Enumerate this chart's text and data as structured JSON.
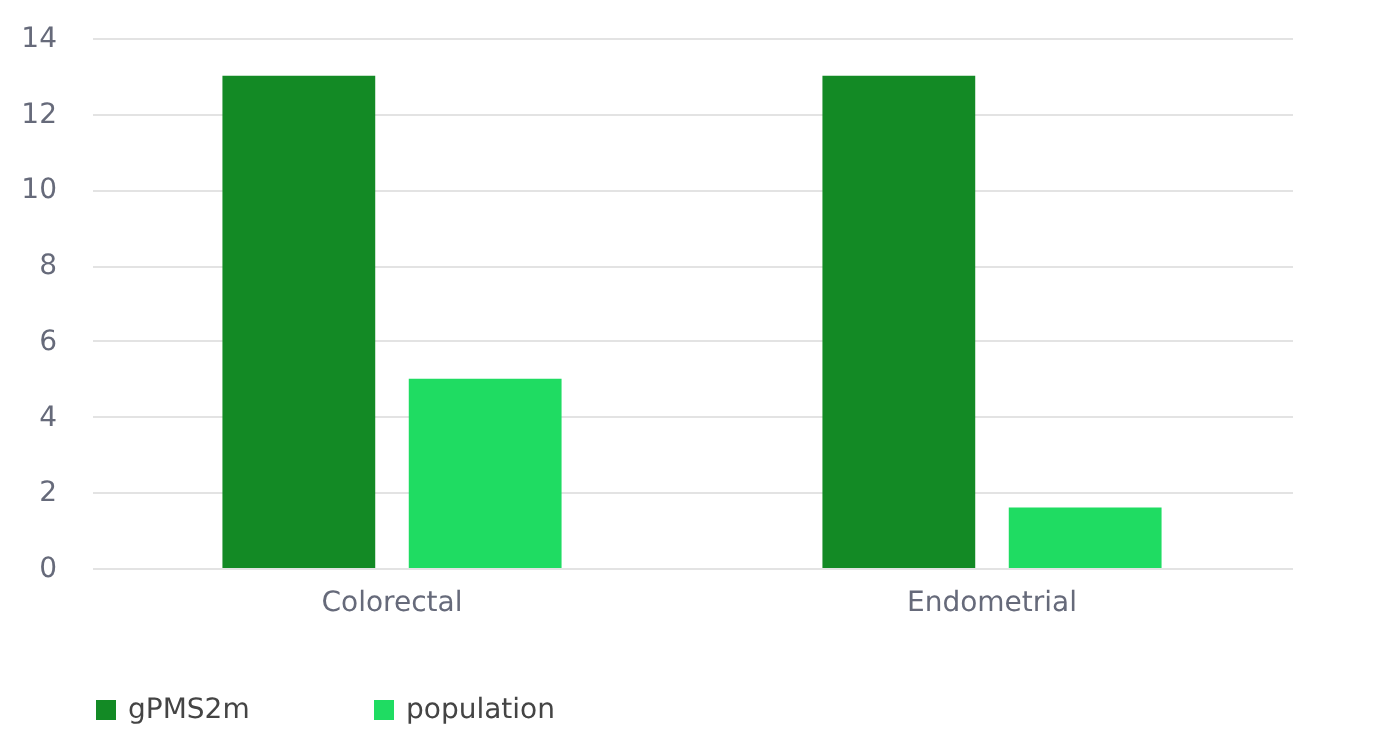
{
  "chart_data": {
    "type": "bar",
    "categories": [
      "Colorectal",
      "Endometrial"
    ],
    "series": [
      {
        "name": "gPMS2m",
        "color": "#138a25",
        "values": [
          13,
          13
        ]
      },
      {
        "name": "population",
        "color": "#1fdc62",
        "values": [
          5,
          1.6
        ]
      }
    ],
    "ylim": [
      0,
      14
    ],
    "yticks": [
      0,
      2,
      4,
      6,
      8,
      10,
      12,
      14
    ],
    "grid": "y",
    "legend": "bottom left"
  }
}
